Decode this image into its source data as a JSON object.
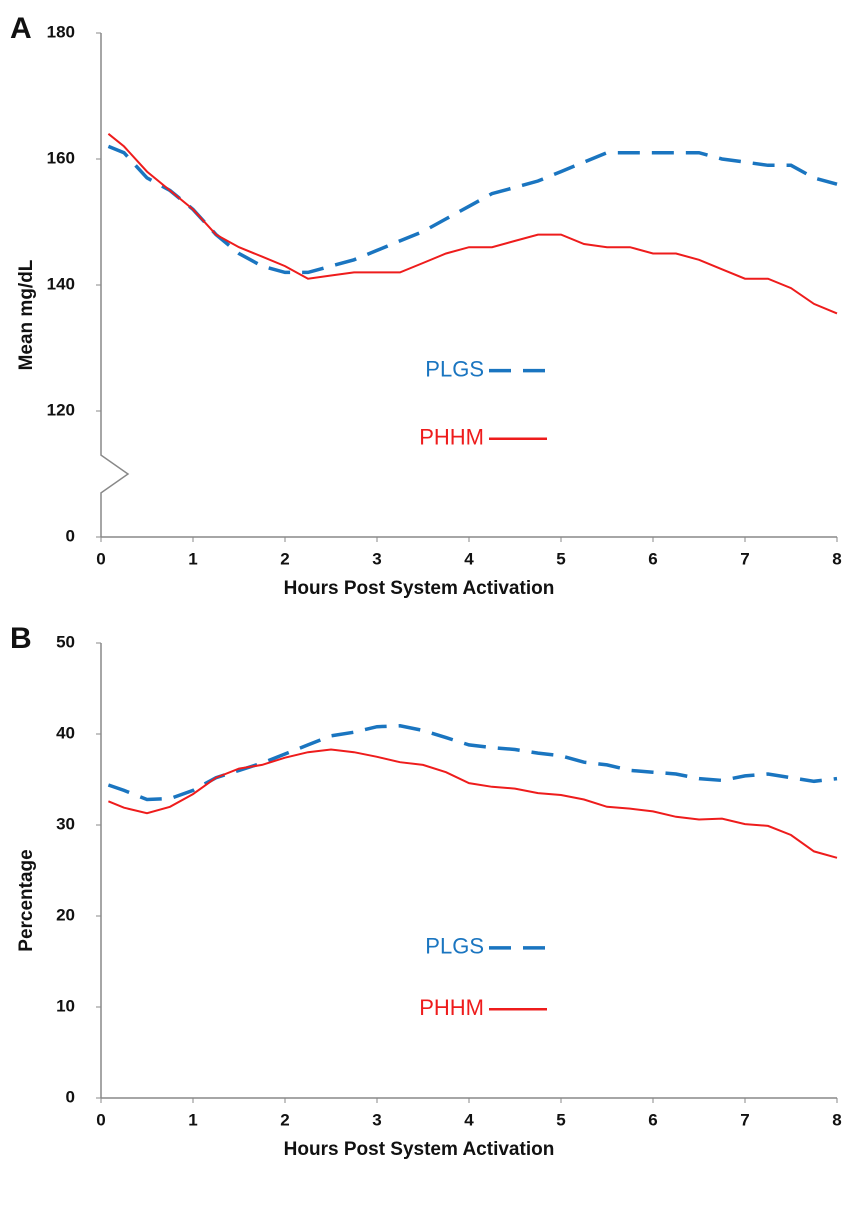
{
  "chart_data": [
    {
      "type": "line",
      "panel_label": "A",
      "x_label": "Hours Post System Activation",
      "y_label": "Mean mg/dL",
      "x": [
        0.08,
        0.25,
        0.5,
        0.75,
        1.0,
        1.25,
        1.5,
        1.75,
        2.0,
        2.25,
        2.5,
        2.75,
        3.0,
        3.25,
        3.5,
        3.75,
        4.0,
        4.25,
        4.5,
        4.75,
        5.0,
        5.25,
        5.5,
        5.75,
        6.0,
        6.25,
        6.5,
        6.75,
        7.0,
        7.25,
        7.5,
        7.75,
        8.0
      ],
      "series": [
        {
          "name": "PLGS",
          "color": "#1a75c0",
          "style": "dashed",
          "values": [
            162,
            161,
            157,
            155,
            152,
            148,
            145,
            143,
            142,
            142,
            143,
            144,
            145.5,
            147,
            148.5,
            150.5,
            152.5,
            154.5,
            155.5,
            156.5,
            158,
            159.5,
            161,
            161,
            161,
            161,
            161,
            160,
            159.5,
            159,
            159,
            157,
            156
          ]
        },
        {
          "name": "PHHM",
          "color": "#ee1c1c",
          "style": "solid",
          "values": [
            164,
            162,
            158,
            155,
            152,
            148,
            146,
            144.5,
            143,
            141,
            141.5,
            142,
            142,
            142,
            143.5,
            145,
            146,
            146,
            147,
            148,
            148,
            146.5,
            146,
            146,
            145,
            145,
            144,
            142.5,
            141,
            141,
            139.5,
            137,
            135.5
          ]
        }
      ],
      "xlim": [
        0,
        8
      ],
      "xticks": [
        0,
        1,
        2,
        3,
        4,
        5,
        6,
        7,
        8
      ],
      "ylim": [
        0,
        180
      ],
      "yticks": [
        0,
        120,
        140,
        160,
        180
      ],
      "y_break": [
        0,
        120
      ],
      "grid": false,
      "legend": "center"
    },
    {
      "type": "line",
      "panel_label": "B",
      "x_label": "Hours Post System Activation",
      "y_label": "Percentage",
      "x": [
        0.08,
        0.25,
        0.5,
        0.75,
        1.0,
        1.25,
        1.5,
        1.75,
        2.0,
        2.25,
        2.5,
        2.75,
        3.0,
        3.25,
        3.5,
        3.75,
        4.0,
        4.25,
        4.5,
        4.75,
        5.0,
        5.25,
        5.5,
        5.75,
        6.0,
        6.25,
        6.5,
        6.75,
        7.0,
        7.25,
        7.5,
        7.75,
        8.0
      ],
      "series": [
        {
          "name": "PLGS",
          "color": "#1a75c0",
          "style": "dashed",
          "values": [
            34.4,
            33.8,
            32.8,
            32.9,
            33.8,
            35.2,
            36,
            36.8,
            37.8,
            38.8,
            39.8,
            40.2,
            40.8,
            40.9,
            40.4,
            39.6,
            38.8,
            38.5,
            38.3,
            37.9,
            37.6,
            36.9,
            36.6,
            36,
            35.8,
            35.6,
            35.1,
            34.9,
            35.4,
            35.6,
            35.2,
            34.8,
            35.1
          ]
        },
        {
          "name": "PHHM",
          "color": "#ee1c1c",
          "style": "solid",
          "values": [
            32.6,
            31.9,
            31.3,
            32,
            33.4,
            35.2,
            36.2,
            36.6,
            37.4,
            38,
            38.3,
            38,
            37.5,
            36.9,
            36.6,
            35.8,
            34.6,
            34.2,
            34,
            33.5,
            33.3,
            32.8,
            32,
            31.8,
            31.5,
            30.9,
            30.6,
            30.7,
            30.1,
            29.9,
            28.9,
            27.1,
            26.4
          ]
        }
      ],
      "xlim": [
        0,
        8
      ],
      "xticks": [
        0,
        1,
        2,
        3,
        4,
        5,
        6,
        7,
        8
      ],
      "ylim": [
        0,
        50
      ],
      "yticks": [
        0,
        10,
        20,
        30,
        40,
        50
      ],
      "grid": false,
      "legend": "center"
    }
  ]
}
